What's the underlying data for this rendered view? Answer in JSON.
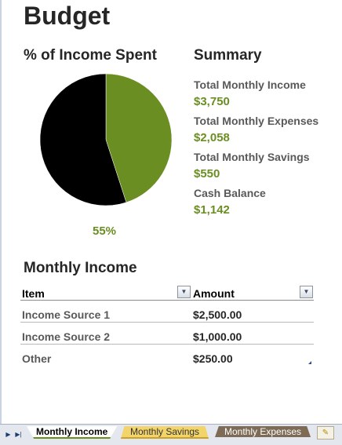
{
  "page": {
    "title": "Budget"
  },
  "chart": {
    "title": "% of Income Spent",
    "percent_label": "55%"
  },
  "chart_data": {
    "type": "pie",
    "title": "% of Income Spent",
    "labels": [
      "",
      ""
    ],
    "values": [
      55,
      45
    ],
    "colors": [
      "#000000",
      "#6b8e23"
    ],
    "data_label": "55%"
  },
  "summary": {
    "title": "Summary",
    "items": [
      {
        "label": "Total Monthly Income",
        "value": "$3,750"
      },
      {
        "label": "Total Monthly Expenses",
        "value": "$2,058"
      },
      {
        "label": "Total Monthly Savings",
        "value": "$550"
      },
      {
        "label": "Cash Balance",
        "value": "$1,142"
      }
    ]
  },
  "income": {
    "title": "Monthly Income",
    "columns": [
      "Item",
      "Amount"
    ],
    "dropdown_icon": "dropdown-arrow-icon",
    "rows": [
      {
        "item": "Income Source 1",
        "amount": "$2,500.00"
      },
      {
        "item": "Income Source 2",
        "amount": "$1,000.00"
      },
      {
        "item": "Other",
        "amount": "$250.00"
      }
    ]
  },
  "tabs": {
    "items": [
      "Monthly Income",
      "Monthly Savings",
      "Monthly Expenses"
    ],
    "active_index": 0,
    "colors": {
      "active_underline": "#6b8e23",
      "savings": "#f2d46b",
      "expenses": "#7d6b55"
    },
    "nav_icons": [
      "scroll-tabs-right-icon",
      "scroll-tabs-last-icon"
    ],
    "new_tab_icon": "insert-sheet-icon"
  }
}
